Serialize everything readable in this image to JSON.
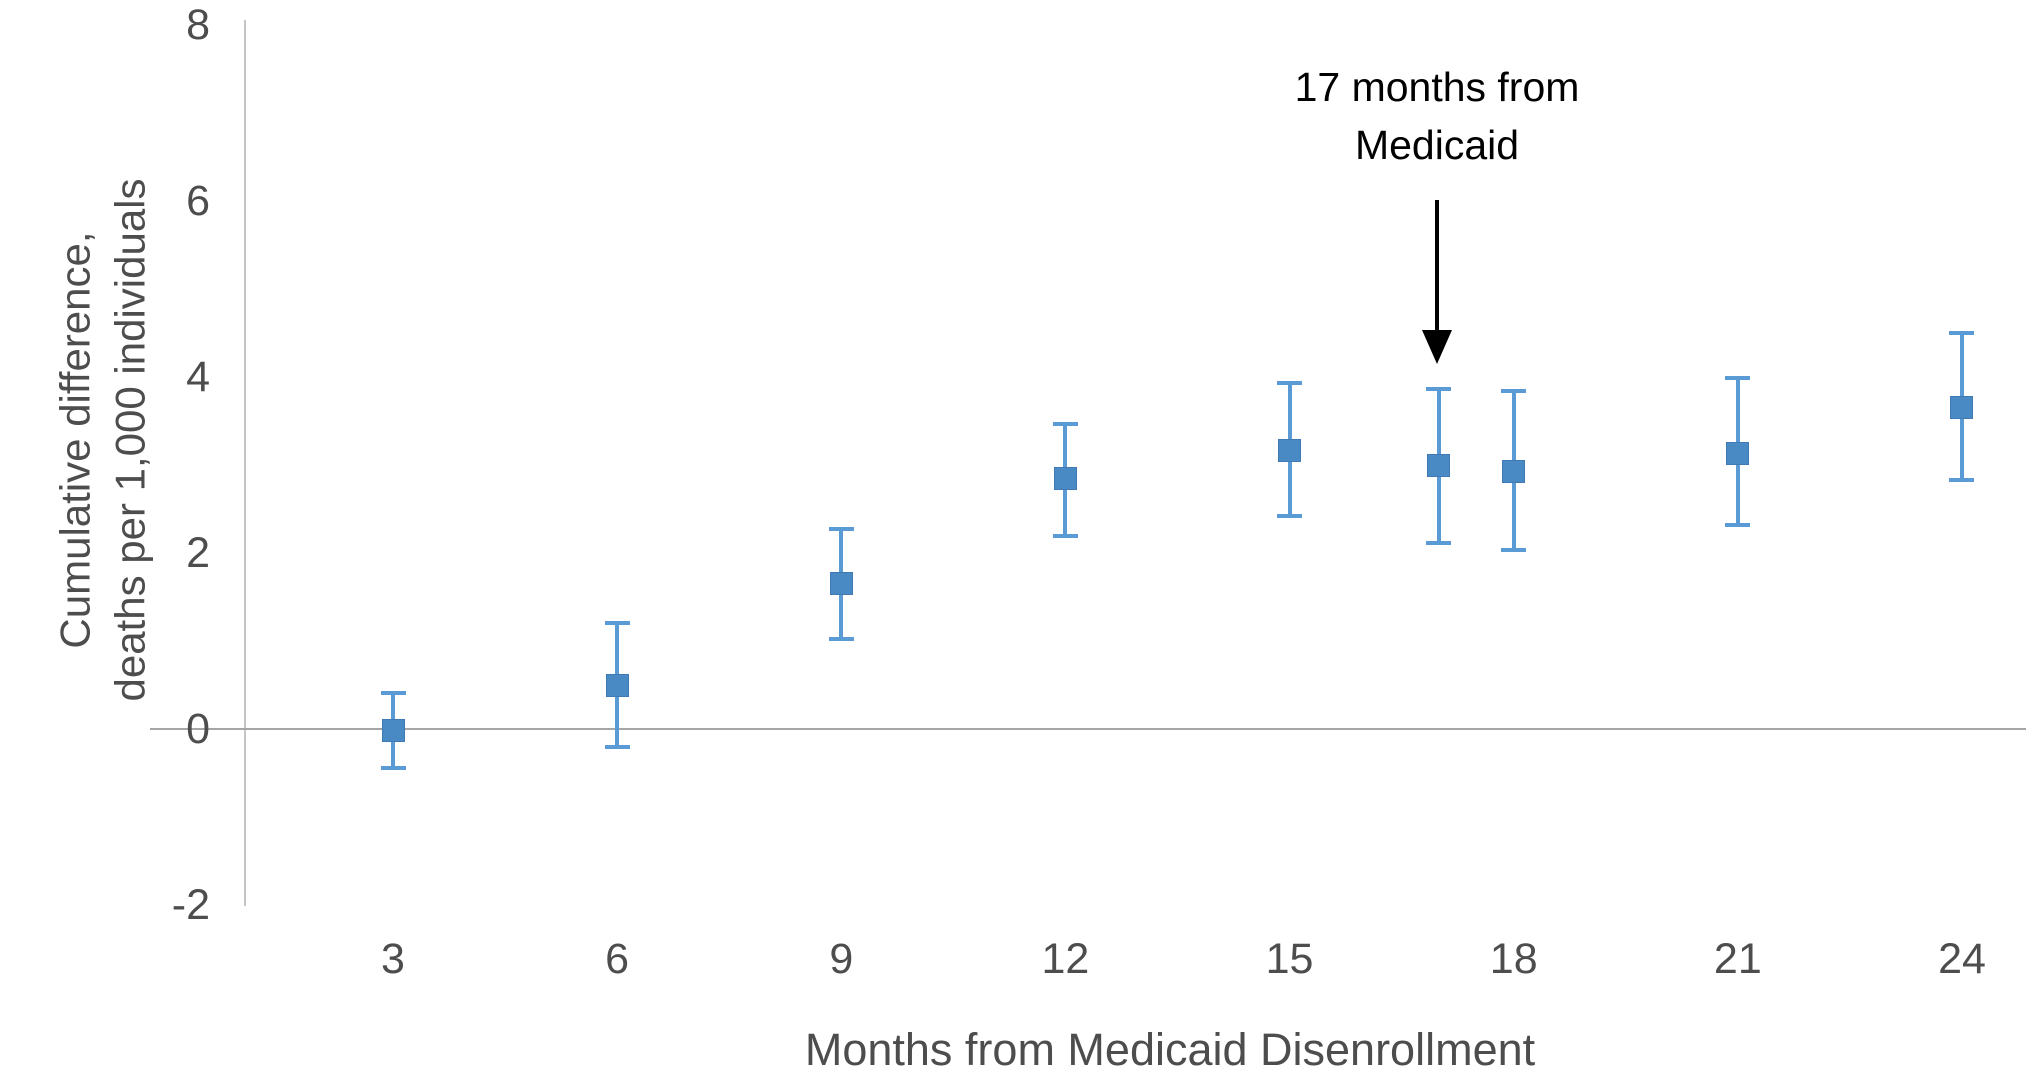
{
  "figure": {
    "y_axis_title_line1": "Cumulative difference,",
    "y_axis_title_line2": "deaths per 1,000 individuals",
    "x_axis_title": "Months from Medicaid Disenrollment",
    "annotation": {
      "line1": "17 months from",
      "line2": "Medicaid"
    }
  },
  "chart_data": {
    "type": "scatter",
    "title": "",
    "xlabel": "Months from Medicaid Disenrollment",
    "ylabel": "Cumulative difference, deaths per 1,000 individuals",
    "x": [
      3,
      6,
      9,
      12,
      15,
      17,
      18,
      21,
      24
    ],
    "series": [
      {
        "name": "Cumulative difference in deaths per 1,000 individuals",
        "values": [
          -0.02,
          0.49,
          1.65,
          2.85,
          3.17,
          2.99,
          2.93,
          3.13,
          3.65
        ],
        "ci_low": [
          -0.44,
          -0.21,
          1.02,
          2.19,
          2.42,
          2.11,
          2.03,
          2.32,
          2.83
        ],
        "ci_high": [
          0.41,
          1.2,
          2.27,
          3.47,
          3.93,
          3.86,
          3.84,
          3.99,
          4.5
        ]
      }
    ],
    "x_ticks": [
      "3",
      "6",
      "9",
      "12",
      "15",
      "18",
      "21",
      "24"
    ],
    "x_tick_values": [
      3,
      6,
      9,
      12,
      15,
      18,
      21,
      24
    ],
    "y_ticks": [
      "8",
      "6",
      "4",
      "2",
      "0",
      "-2"
    ],
    "y_tick_values": [
      8,
      6,
      4,
      2,
      0,
      -2
    ],
    "ylim": [
      -2,
      8
    ],
    "xlim": [
      1,
      25.5
    ],
    "grid": "zero-line-only",
    "legend": "none",
    "marker": "square",
    "error_bars": true,
    "annotation": {
      "text": "17 months from Medicaid",
      "arrow_points_to_x": 17
    },
    "colors": {
      "marker": "#4a8ac4",
      "error_bar": "#5b9bd5",
      "axis_line": "#c4c4c4",
      "zero_line": "#a6a6a6",
      "tick_text": "#4d4d4d",
      "annotation_text": "#000000"
    }
  }
}
